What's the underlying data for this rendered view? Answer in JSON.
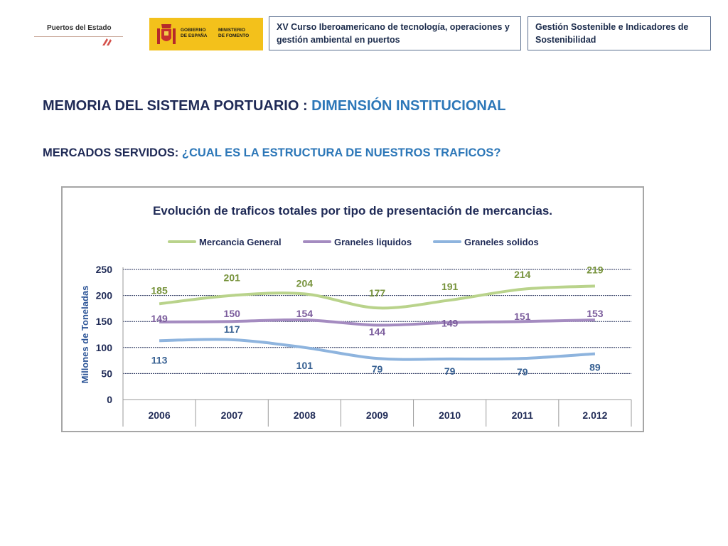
{
  "header": {
    "logo_puertos": "Puertos del Estado",
    "logo_gobierno": "GOBIERNO\nDE ESPAÑA",
    "logo_ministerio": "MINISTERIO\nDE FOMENTO",
    "course_title": "XV Curso Iberoamericano de tecnología, operaciones y gestión ambiental en puertos",
    "section_title": "Gestión Sostenible e Indicadores de Sostenibilidad"
  },
  "titles": {
    "main_prefix": "MEMORIA DEL SISTEMA PORTUARIO : ",
    "main_highlight": "DIMENSIÓN INSTITUCIONAL",
    "sub_prefix": "MERCADOS SERVIDOS: ",
    "sub_highlight": "¿CUAL ES LA ESTRUCTURA DE NUESTROS TRAFICOS?"
  },
  "colors": {
    "mercancia_general": "#b9d38b",
    "mercancia_general_label": "#77933c",
    "graneles_liquidos": "#a48bc0",
    "graneles_liquidos_label": "#7b5c9c",
    "graneles_solidos": "#8eb4de",
    "graneles_solidos_label": "#376092",
    "axis_text": "#1f2a56",
    "ylabel": "#2d5597"
  },
  "chart_data": {
    "type": "line",
    "title": "Evolución de traficos totales por tipo de presentación de mercancias.",
    "xlabel": "",
    "ylabel": "Millones de Toneladas",
    "categories": [
      "2006",
      "2007",
      "2008",
      "2009",
      "2010",
      "2011",
      "2.012"
    ],
    "ylim": [
      0,
      250
    ],
    "yticks": [
      "0",
      "50",
      "100",
      "150",
      "200",
      "250"
    ],
    "grid": true,
    "legend_position": "top",
    "series": [
      {
        "name": "Mercancia General",
        "values": [
          185,
          201,
          204,
          177,
          191,
          214,
          219
        ],
        "smoothed": [
          184,
          200,
          203,
          176,
          191,
          212,
          218
        ]
      },
      {
        "name": "Graneles liquidos",
        "values": [
          149,
          150,
          154,
          144,
          149,
          151,
          153
        ],
        "smoothed": [
          149,
          150,
          153,
          143,
          148,
          150,
          153
        ]
      },
      {
        "name": "Graneles solidos",
        "values": [
          113,
          117,
          101,
          79,
          79,
          79,
          89
        ],
        "smoothed": [
          113,
          115,
          100,
          79,
          78,
          79,
          88
        ]
      }
    ]
  }
}
